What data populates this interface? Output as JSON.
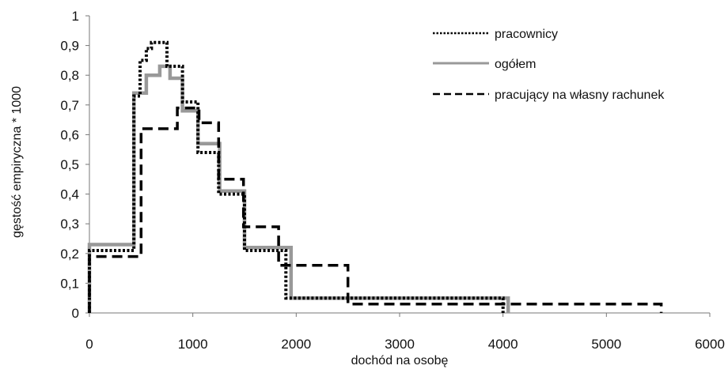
{
  "chart_data": {
    "type": "line",
    "step": true,
    "xlabel": "dochód na osobę",
    "ylabel": "gęstość empiryczna * 1000",
    "xlim": [
      0,
      6000
    ],
    "ylim": [
      0,
      1
    ],
    "x_ticks": [
      0,
      1000,
      2000,
      3000,
      4000,
      5000,
      6000
    ],
    "y_ticks": [
      0,
      0.1,
      0.2,
      0.3,
      0.4,
      0.5,
      0.6,
      0.7,
      0.8,
      0.9,
      1
    ],
    "y_tick_labels": [
      "0",
      "0,1",
      "0,2",
      "0,3",
      "0,4",
      "0,5",
      "0,6",
      "0,7",
      "0,8",
      "0,9",
      "1"
    ],
    "x_tick_labels": [
      "0",
      "1000",
      "2000",
      "3000",
      "4000",
      "5000",
      "6000"
    ],
    "grid": false,
    "legend_position": "top-right",
    "series": [
      {
        "name": "pracownicy",
        "style": "dotted",
        "color": "#000000",
        "x": [
          0,
          0,
          430,
          430,
          490,
          490,
          550,
          550,
          600,
          600,
          750,
          750,
          900,
          900,
          1050,
          1050,
          1250,
          1250,
          1500,
          1500,
          1900,
          1900,
          2500,
          2500,
          4000,
          4000
        ],
        "y": [
          0,
          0.21,
          0.21,
          0.73,
          0.73,
          0.85,
          0.85,
          0.89,
          0.89,
          0.91,
          0.91,
          0.83,
          0.83,
          0.71,
          0.71,
          0.54,
          0.54,
          0.4,
          0.4,
          0.21,
          0.21,
          0.05,
          0.05,
          0.05,
          0.05,
          0
        ]
      },
      {
        "name": "ogółem",
        "style": "solid",
        "color": "#999999",
        "x": [
          0,
          0,
          430,
          430,
          550,
          550,
          680,
          680,
          780,
          780,
          900,
          900,
          1050,
          1050,
          1260,
          1260,
          1500,
          1500,
          1950,
          1950,
          4050,
          4050
        ],
        "y": [
          0,
          0.23,
          0.23,
          0.74,
          0.74,
          0.8,
          0.8,
          0.83,
          0.83,
          0.79,
          0.79,
          0.68,
          0.68,
          0.57,
          0.57,
          0.41,
          0.41,
          0.22,
          0.22,
          0.05,
          0.05,
          0
        ]
      },
      {
        "name": "pracujący na własny rachunek",
        "style": "dashed",
        "color": "#000000",
        "x": [
          0,
          0,
          500,
          500,
          850,
          850,
          1060,
          1060,
          1250,
          1250,
          1490,
          1490,
          1830,
          1830,
          2500,
          2500,
          5530,
          5530
        ],
        "y": [
          0,
          0.19,
          0.19,
          0.62,
          0.62,
          0.69,
          0.69,
          0.64,
          0.64,
          0.45,
          0.45,
          0.29,
          0.29,
          0.16,
          0.16,
          0.03,
          0.03,
          0
        ]
      }
    ]
  }
}
